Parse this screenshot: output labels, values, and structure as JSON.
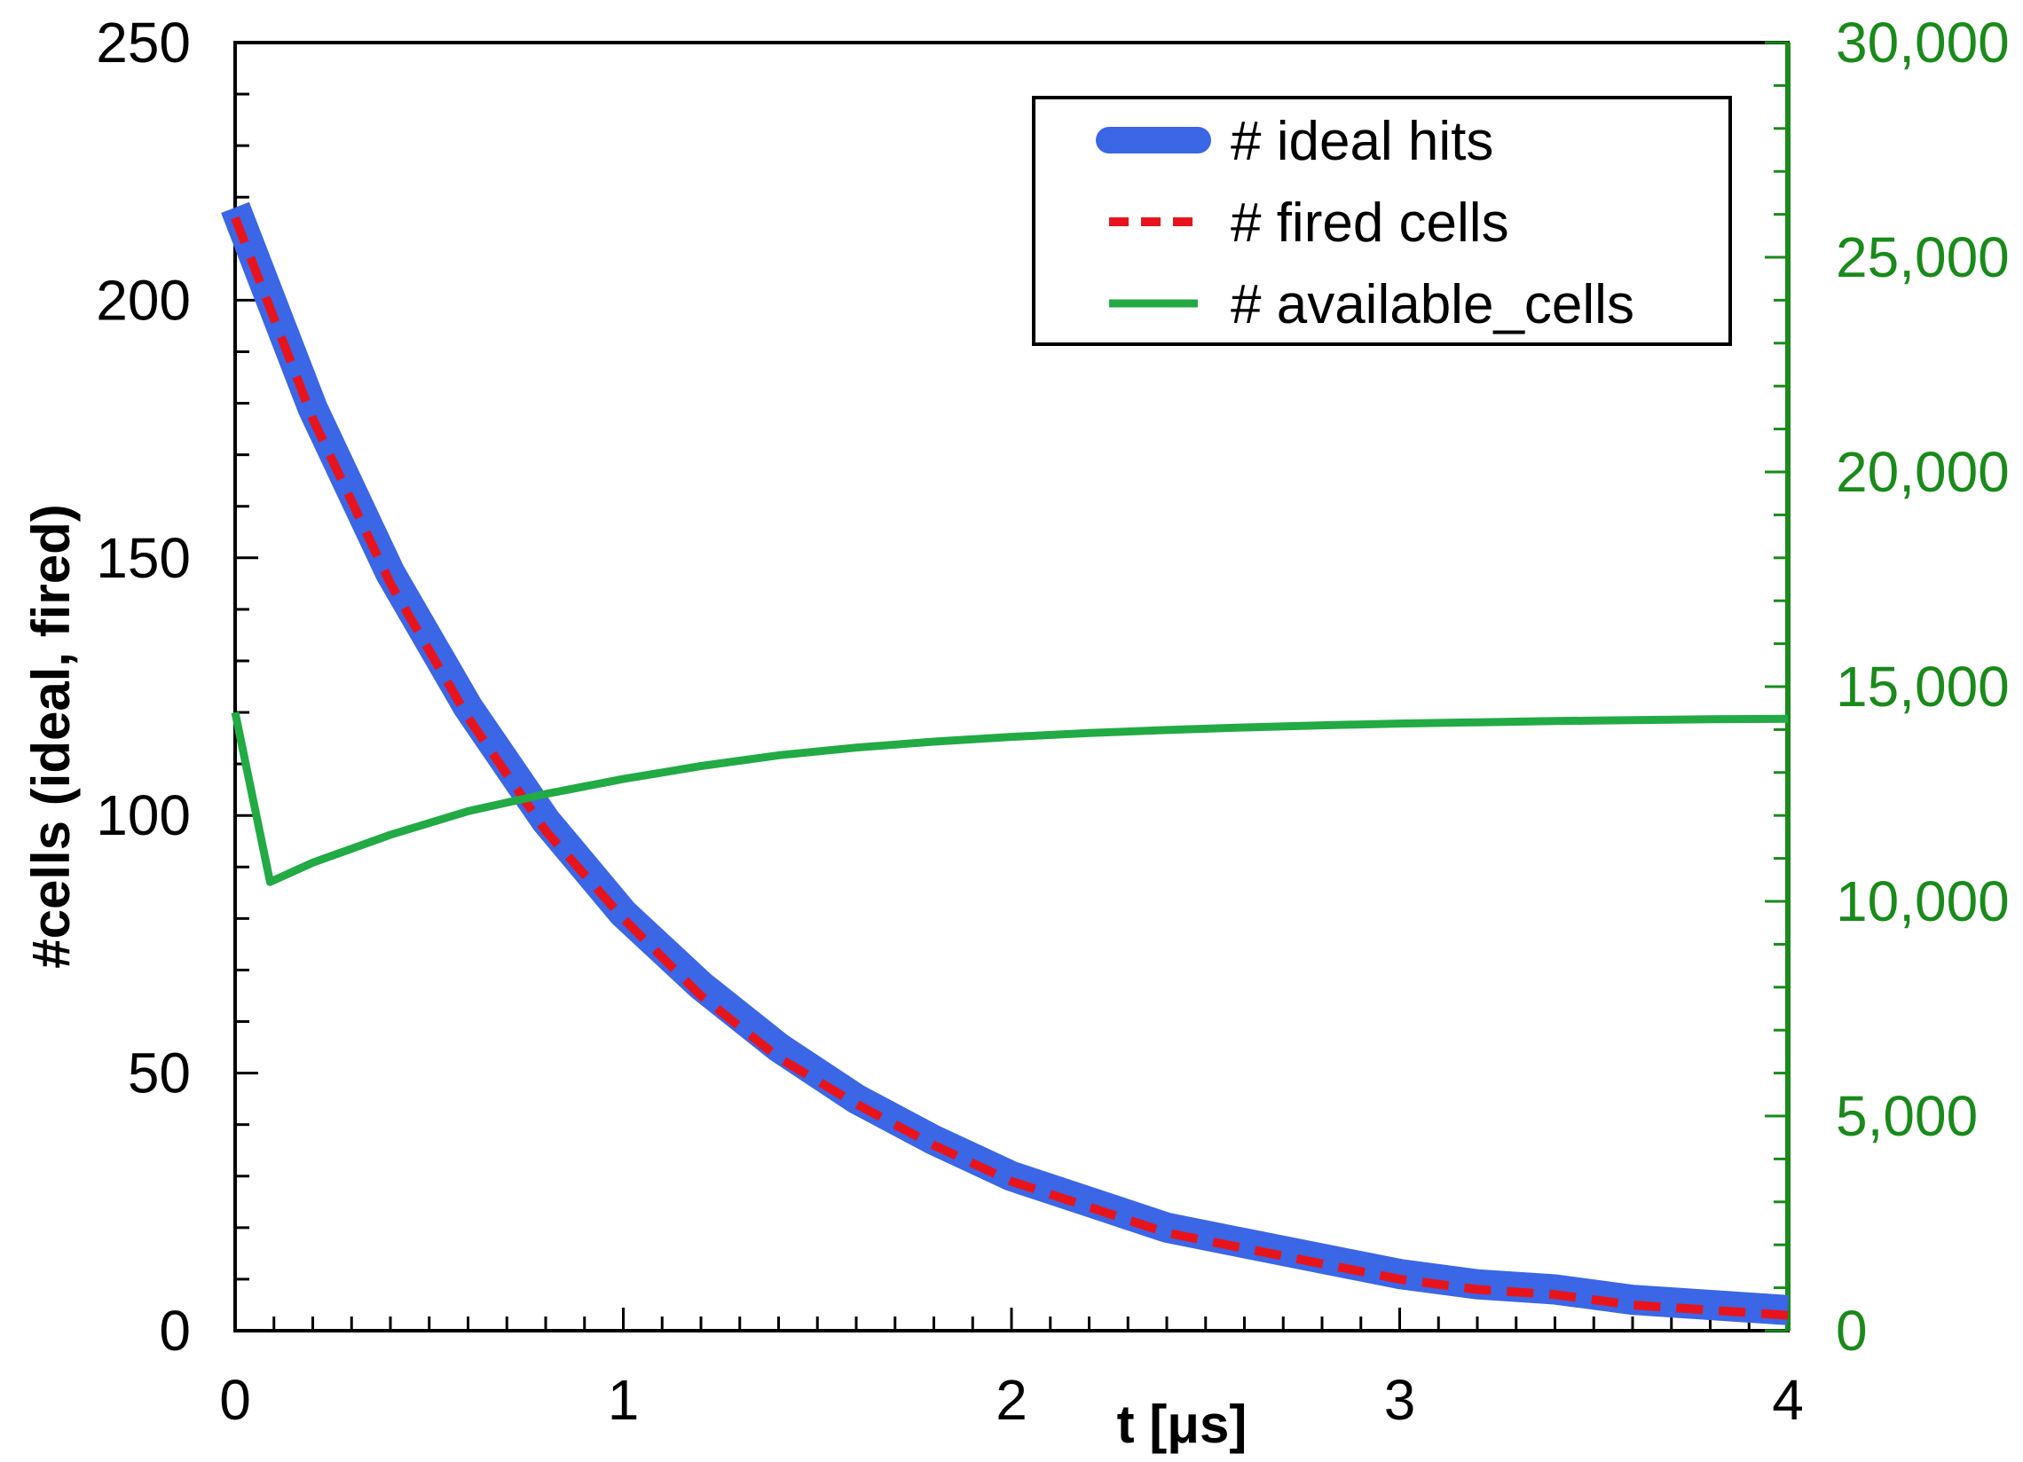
{
  "chart_data": {
    "type": "line",
    "title": "",
    "xlabel": "t [μs]",
    "ylabel": "#cells (ideal, fired)",
    "y2label": "",
    "xlim": [
      0,
      4
    ],
    "ylim": [
      0,
      250
    ],
    "y2lim": [
      0,
      30000
    ],
    "xticks": [
      0,
      1,
      2,
      3,
      4
    ],
    "xtick_labels": [
      "0",
      "1",
      "2",
      "3",
      "4"
    ],
    "yticks": [
      0,
      50,
      100,
      150,
      200,
      250
    ],
    "ytick_labels": [
      "0",
      "50",
      "100",
      "150",
      "200",
      "250"
    ],
    "y2ticks": [
      0,
      5000,
      10000,
      15000,
      20000,
      25000,
      30000
    ],
    "y2tick_labels": [
      "0",
      "5,000",
      "10,000",
      "15,000",
      "20,000",
      "25,000",
      "30,000"
    ],
    "grid": false,
    "legend_position": "top-right",
    "series": [
      {
        "name": "# ideal hits",
        "axis": "left",
        "color": "#3b66e6",
        "style": "thick-solid",
        "x": [
          0,
          0.2,
          0.4,
          0.6,
          0.8,
          1.0,
          1.2,
          1.4,
          1.6,
          1.8,
          2.0,
          2.2,
          2.4,
          2.6,
          2.8,
          3.0,
          3.2,
          3.4,
          3.6,
          3.8,
          4.0
        ],
        "values": [
          218,
          179,
          147,
          121,
          99,
          81,
          67,
          55,
          45,
          37,
          30,
          25,
          20,
          17,
          14,
          11,
          9,
          8,
          6,
          5,
          4
        ]
      },
      {
        "name": "# fired cells",
        "axis": "left",
        "color": "#e8141c",
        "style": "dashed",
        "x": [
          0,
          0.2,
          0.4,
          0.6,
          0.8,
          1.0,
          1.2,
          1.4,
          1.6,
          1.8,
          2.0,
          2.2,
          2.4,
          2.6,
          2.8,
          3.0,
          3.2,
          3.4,
          3.6,
          3.8,
          4.0
        ],
        "values": [
          216,
          177,
          145,
          119,
          97,
          80,
          65,
          53,
          44,
          36,
          29,
          24,
          19,
          16,
          13,
          10,
          8,
          7,
          5,
          4,
          3
        ]
      },
      {
        "name": "# available_cells",
        "axis": "right",
        "color": "#22aa44",
        "style": "solid",
        "x": [
          0,
          0.09,
          0.2,
          0.4,
          0.6,
          0.8,
          1.0,
          1.2,
          1.4,
          1.6,
          1.8,
          2.0,
          2.2,
          2.4,
          2.6,
          2.8,
          3.0,
          3.2,
          3.4,
          3.6,
          3.8,
          4.0
        ],
        "values": [
          14400,
          10450,
          10900,
          11550,
          12100,
          12500,
          12850,
          13150,
          13400,
          13580,
          13720,
          13830,
          13920,
          13990,
          14050,
          14100,
          14140,
          14170,
          14200,
          14220,
          14240,
          14250
        ]
      }
    ]
  },
  "colors": {
    "axis": "#000000",
    "right_axis": "#1a8a1a",
    "right_tick_text": "#1a8a1a"
  }
}
